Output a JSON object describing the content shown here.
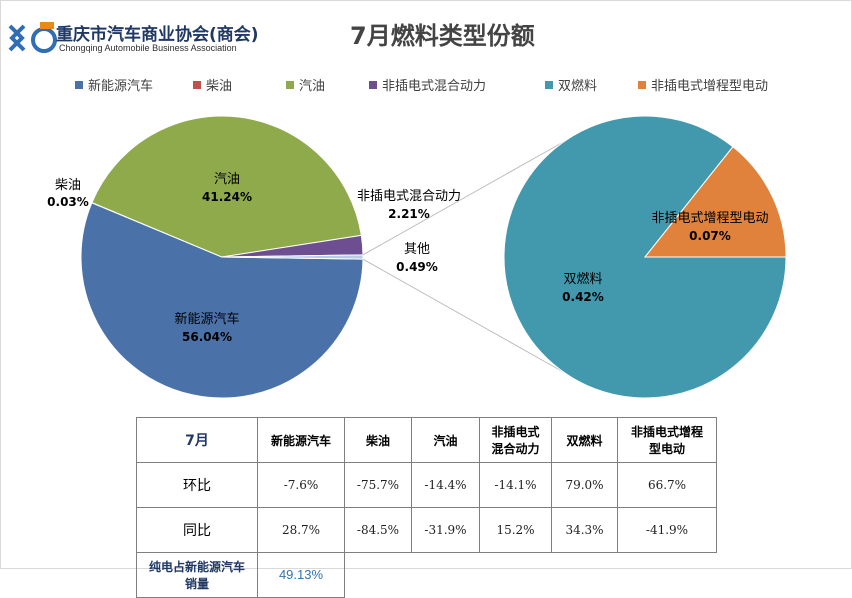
{
  "logo": {
    "main": "重庆市汽车商业协会(商会)",
    "sub": "Chongqing Automobile Business Association",
    "colors": {
      "blue": "#2f6db5",
      "orange": "#e88a1a"
    }
  },
  "title": "7月燃料类型份额",
  "legend": [
    {
      "label": "新能源汽车",
      "color": "#4a72a8"
    },
    {
      "label": "柴油",
      "color": "#c0504d"
    },
    {
      "label": "汽油",
      "color": "#8faa4b"
    },
    {
      "label": "非插电式混合动力",
      "color": "#6d4f91"
    },
    {
      "label": "双燃料",
      "color": "#4299ae"
    },
    {
      "label": "非插电式增程型电动",
      "color": "#e0823b"
    }
  ],
  "chart_data": [
    {
      "type": "pie",
      "title": "",
      "slices": [
        {
          "name": "新能源汽车",
          "value": 56.04,
          "label": "56.04%",
          "color": "#4a72a8"
        },
        {
          "name": "柴油",
          "value": 0.03,
          "label": "0.03%",
          "color": "#c0504d"
        },
        {
          "name": "汽油",
          "value": 41.24,
          "label": "41.24%",
          "color": "#8faa4b"
        },
        {
          "name": "非插电式混合动力",
          "value": 2.21,
          "label": "2.21%",
          "color": "#6d4f91"
        },
        {
          "name": "其他",
          "value": 0.49,
          "label": "0.49%",
          "color": "#b8cce4"
        }
      ]
    },
    {
      "type": "pie",
      "title": "",
      "slices": [
        {
          "name": "双燃料",
          "value": 0.42,
          "label": "0.42%",
          "color": "#4299ae"
        },
        {
          "name": "非插电式增程型电动",
          "value": 0.07,
          "label": "0.07%",
          "color": "#e0823b"
        }
      ]
    }
  ],
  "table": {
    "headers": [
      "7月",
      "新能源汽车",
      "柴油",
      "汽油",
      "非插电式混合动力",
      "双燃料",
      "非插电式增程型电动"
    ],
    "header_lines": [
      [
        "7月"
      ],
      [
        "新能源汽车"
      ],
      [
        "柴油"
      ],
      [
        "汽油"
      ],
      [
        "非插电式",
        "混合动力"
      ],
      [
        "双燃料"
      ],
      [
        "非插电式增程",
        "型电动"
      ]
    ],
    "rows": [
      {
        "label": "环比",
        "values": [
          "-7.6%",
          "-75.7%",
          "-14.4%",
          "-14.1%",
          "79.0%",
          "66.7%"
        ]
      },
      {
        "label": "同比",
        "values": [
          "28.7%",
          "-84.5%",
          "-31.9%",
          "15.2%",
          "34.3%",
          "-41.9%"
        ]
      }
    ],
    "footer": {
      "label_lines": [
        "纯电占新能源汽车",
        "销量"
      ],
      "value": "49.13%"
    }
  }
}
